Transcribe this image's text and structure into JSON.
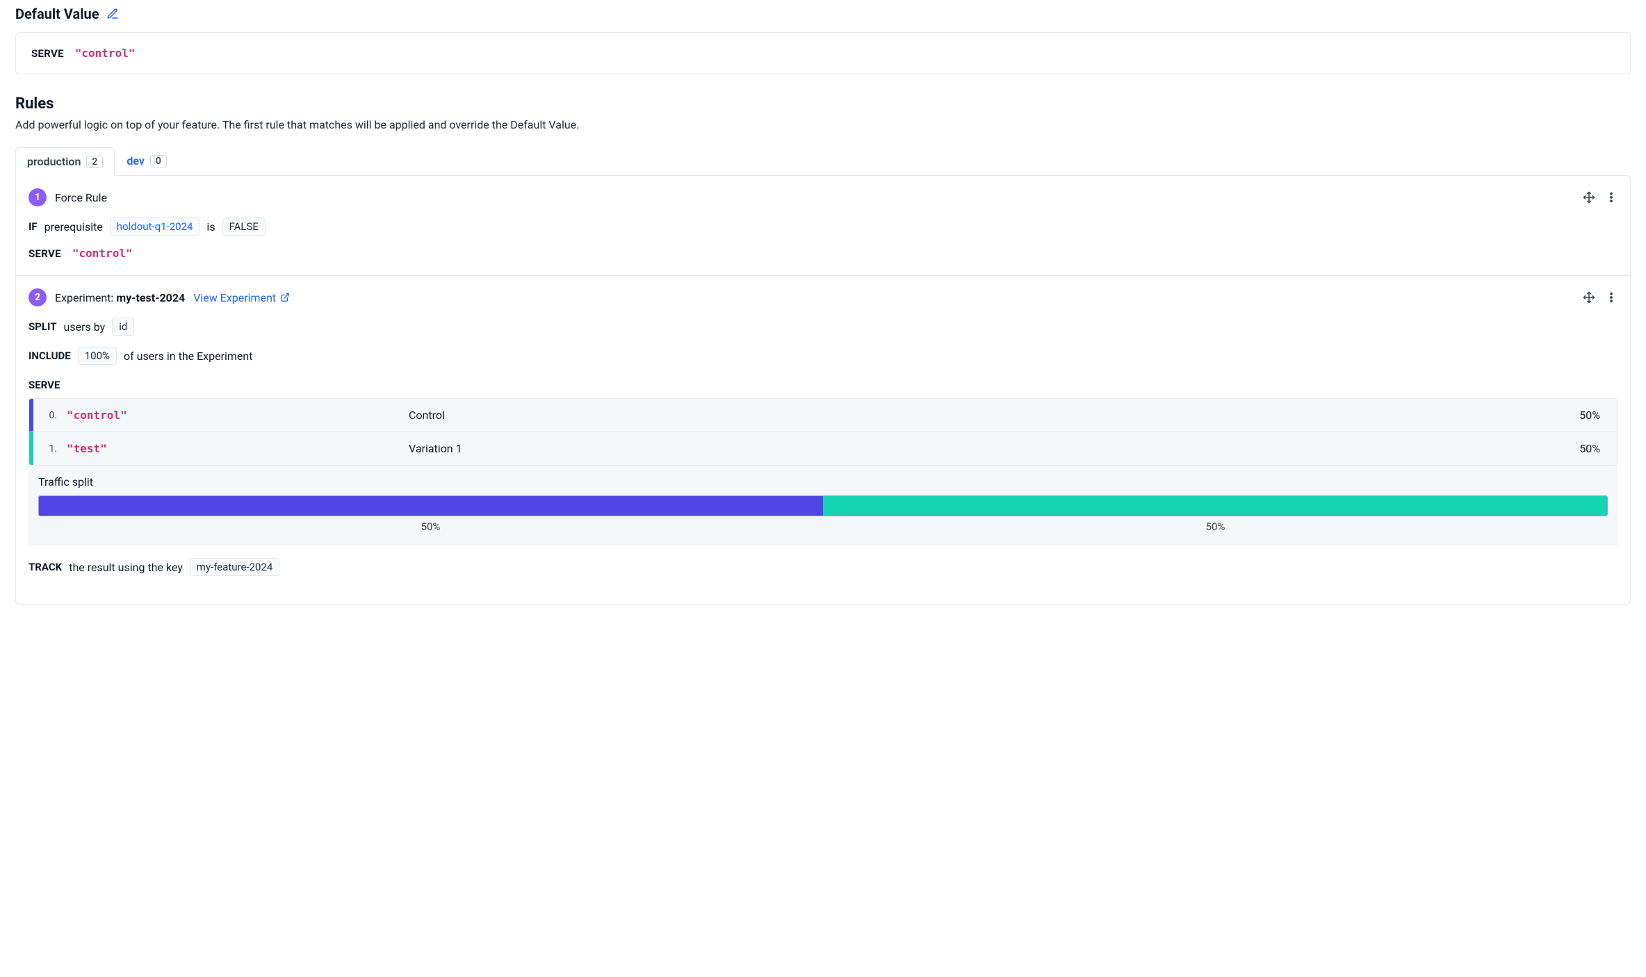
{
  "colors": {
    "variation_0": "#4f46e5",
    "variation_1": "#14d3b1",
    "rule_badge": "#8b5cf6",
    "link": "#2563eb",
    "pink": "#db2777"
  },
  "default_value": {
    "title": "Default Value",
    "serve_kw": "SERVE",
    "serve_value": "\"control\""
  },
  "rules_section": {
    "title": "Rules",
    "description": "Add powerful logic on top of your feature. The first rule that matches will be applied and override the Default Value."
  },
  "tabs": [
    {
      "label": "production",
      "count": "2",
      "active": true
    },
    {
      "label": "dev",
      "count": "0",
      "active": false
    }
  ],
  "rule1": {
    "number": "1",
    "title": "Force Rule",
    "if_kw": "IF",
    "prerequisite_word": "prerequisite",
    "prerequisite_value": "holdout-q1-2024",
    "is_word": "is",
    "bool_value": "FALSE",
    "serve_kw": "SERVE",
    "serve_value": "\"control\""
  },
  "rule2": {
    "number": "2",
    "title_prefix": "Experiment: ",
    "title_bold": "my-test-2024",
    "view_link": "View Experiment",
    "split_kw": "SPLIT",
    "split_text": "users by",
    "split_attr": "id",
    "include_kw": "INCLUDE",
    "include_pct": "100%",
    "include_text": "of users in the Experiment",
    "serve_kw": "SERVE",
    "variations": [
      {
        "idx": "0.",
        "key": "\"control\"",
        "name": "Control",
        "pct": "50%",
        "weight": 50,
        "color": "#4f46e5"
      },
      {
        "idx": "1.",
        "key": "\"test\"",
        "name": "Variation 1",
        "pct": "50%",
        "weight": 50,
        "color": "#14d3b1"
      }
    ],
    "traffic_split": {
      "title": "Traffic split",
      "segments": [
        {
          "weight": 50,
          "color": "#4f46e5",
          "label": "50%"
        },
        {
          "weight": 50,
          "color": "#14d3b1",
          "label": "50%"
        }
      ]
    },
    "track_kw": "TRACK",
    "track_text": "the result using the key",
    "track_key": "my-feature-2024"
  }
}
